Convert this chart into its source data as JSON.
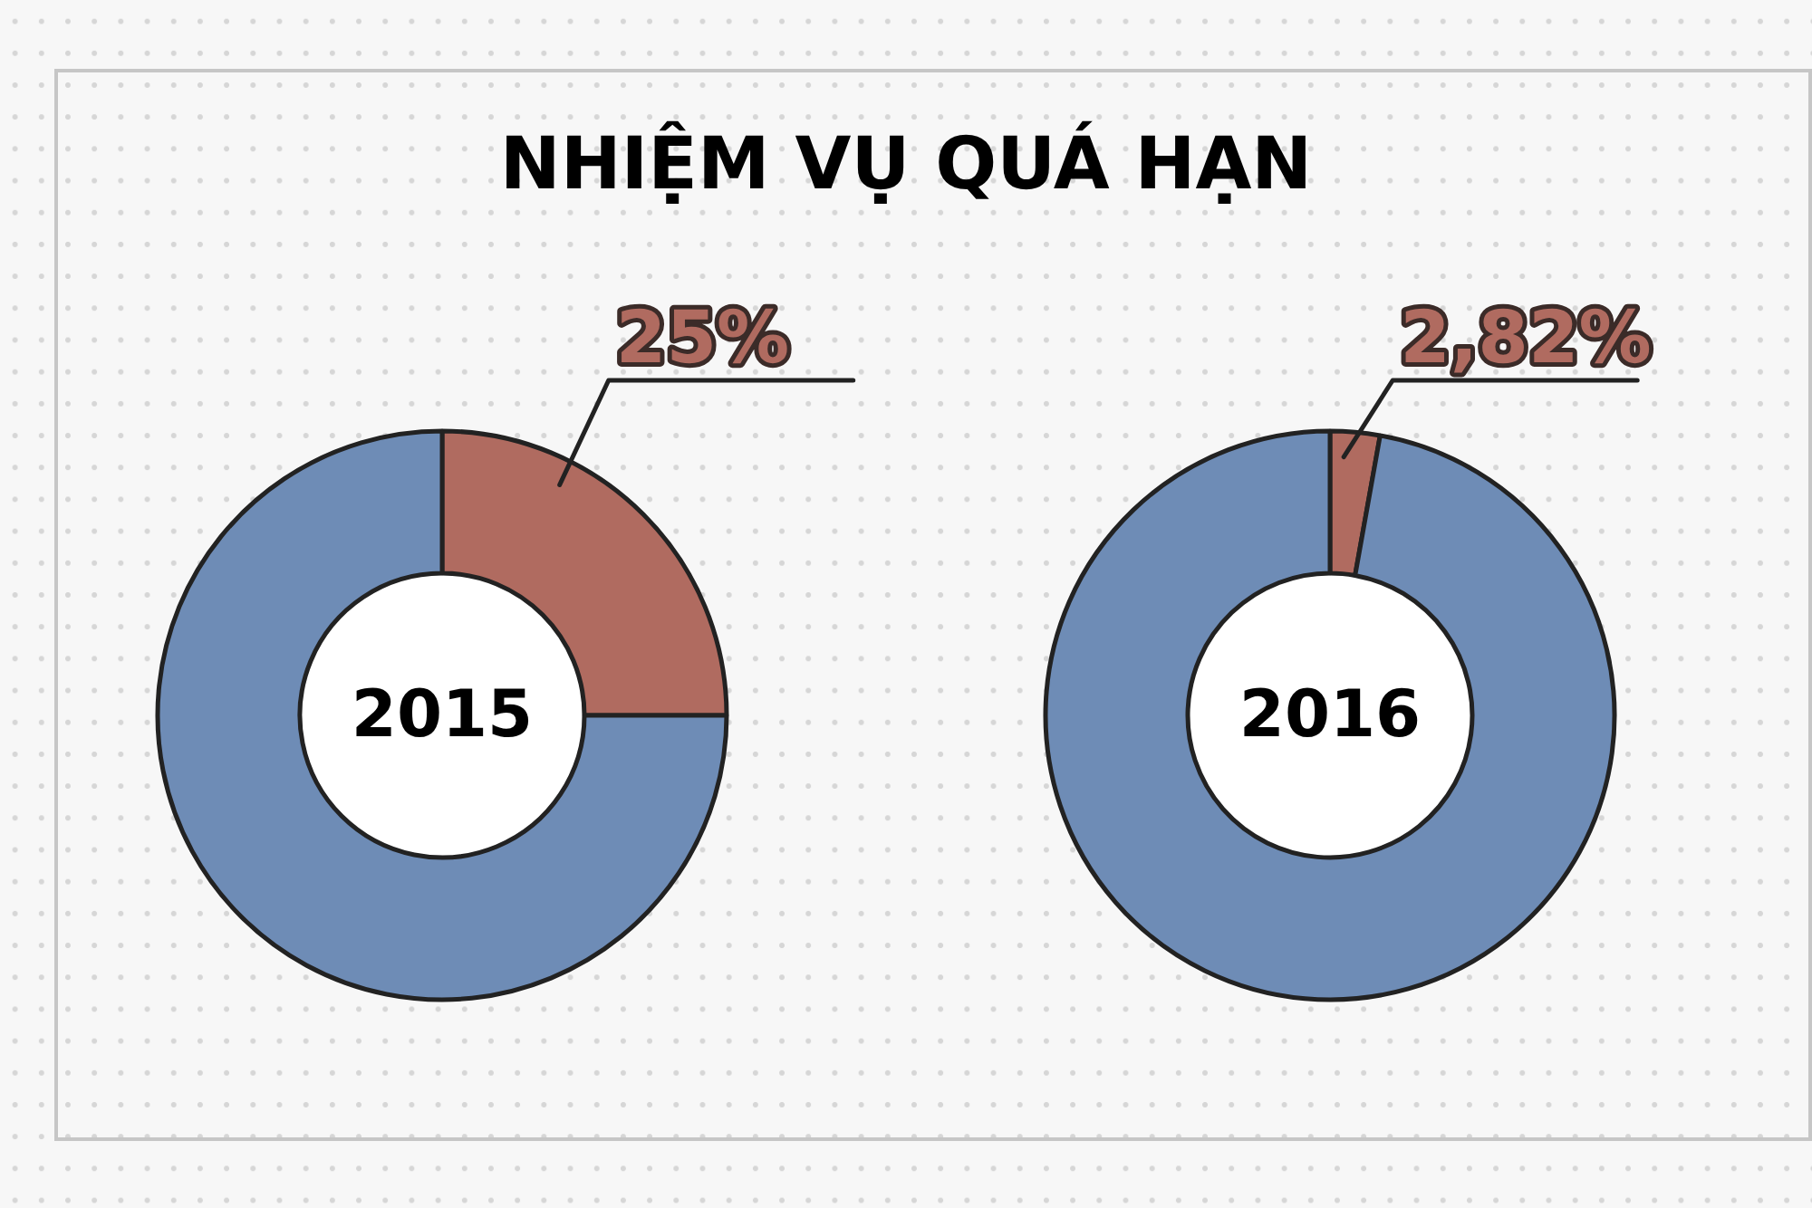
{
  "chart_data": [
    {
      "type": "donut",
      "title": "NHIỆM VỤ QUÁ HẠN",
      "categories": [
        null,
        null
      ],
      "values": [
        25,
        75
      ],
      "colors": [
        "#b06b60",
        "#6e8cb6"
      ],
      "value_labels": [
        "25%",
        null
      ],
      "annotations": [
        "2015"
      ]
    },
    {
      "type": "donut",
      "categories": [
        null,
        null
      ],
      "values": [
        2.82,
        97.18
      ],
      "colors": [
        "#b06b60",
        "#6e8cb6"
      ],
      "value_labels": [
        "2,82%",
        null
      ],
      "annotations": [
        "2016"
      ]
    }
  ]
}
